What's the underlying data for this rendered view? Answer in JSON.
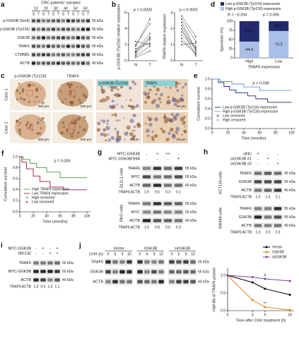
{
  "figure": {
    "a": {
      "label": "a",
      "title": "CRC patients' samples",
      "patients": [
        "1#",
        "2#",
        "3#",
        "4#",
        "5#",
        "6#"
      ],
      "lanes": [
        "S",
        "T",
        "S",
        "T",
        "S",
        "T",
        "S",
        "T",
        "S",
        "T",
        "S",
        "T"
      ],
      "rows": [
        "p-GSK3B (Ser9)",
        "p-GSK3B (Tyr216)",
        "GSK3B",
        "TRAF6",
        "CTNNB1",
        "ACTB"
      ],
      "kda": [
        "55 kDa",
        "55 kDa",
        "55 kDa",
        "55 kDa",
        "90 kDa",
        "40 kDa"
      ]
    },
    "c": {
      "label": "c",
      "stains": [
        "p-GSK3B (Tyr216)",
        "TRAF6"
      ],
      "cases": [
        "Case 1",
        "Case 2"
      ],
      "scale_bars": [
        "500 μm",
        "50 μm"
      ]
    },
    "g": {
      "label": "g",
      "conditions": [
        {
          "name": "MYC-GSK3B",
          "signs": [
            "-",
            "+",
            "++",
            "-"
          ]
        },
        {
          "name": "MYC-GSK3B/S9A",
          "signs": [
            "-",
            "-",
            "-",
            "+"
          ]
        }
      ],
      "blocks": [
        {
          "cells": "DLD-1 cells",
          "rows": [
            "TRAF6",
            "MYC",
            "ACTB"
          ],
          "kda": [
            "55 kDa",
            "55 kDa",
            "40 kDa"
          ],
          "ratio_label": "TRAF6:ACTB",
          "ratios": [
            "1.0",
            "0.5",
            "0.3",
            "0.1"
          ]
        },
        {
          "cells": "RKO cells",
          "rows": [
            "TRAF6",
            "MYC",
            "ACTB"
          ],
          "kda": [
            "55 kDa",
            "55 kDa",
            "40 kDa"
          ],
          "ratio_label": "TRAF6:ACTB",
          "ratios": [
            "1.0",
            "0.8",
            "0.5",
            "0.3"
          ]
        }
      ]
    },
    "h": {
      "label": "h",
      "conditions": [
        {
          "name": "siNC",
          "signs": [
            "+",
            "-",
            "-"
          ]
        },
        {
          "name": "siGSK3B #1",
          "signs": [
            "-",
            "+",
            "-"
          ]
        },
        {
          "name": "siGSK3B #2",
          "signs": [
            "-",
            "-",
            "+"
          ]
        }
      ],
      "blocks": [
        {
          "cells": "HCT116 cells",
          "rows": [
            "TRAF6",
            "GSK3B",
            "ACTB"
          ],
          "kda": [
            "55 kDa",
            "55 kDa",
            "40 kDa"
          ],
          "ratio_label": "TRAF6:ACTB",
          "ratios": [
            "1.0",
            "1.5",
            "2.1"
          ]
        },
        {
          "cells": "SW480 cells",
          "rows": [
            "TRAF6",
            "GSK3B",
            "ACTB"
          ],
          "kda": [
            "55 kDa",
            "55 kDa",
            "40 kDa"
          ],
          "ratio_label": "TRAF6:ACTB",
          "ratios": [
            "1.0",
            "2.0",
            "2.5"
          ]
        }
      ]
    },
    "i": {
      "label": "i",
      "conditions": [
        {
          "name": "MYC-GSK3B",
          "signs": [
            "-",
            "+",
            "-",
            "+"
          ]
        },
        {
          "name": "MG132",
          "signs": [
            "-",
            "-",
            "+",
            "+"
          ]
        }
      ],
      "blocks": [
        {
          "rows": [
            "TRAF6",
            "MYC-GSK3B",
            "ACTB"
          ],
          "kda": [
            "55 kDa",
            "55 kDa",
            "40 kDa"
          ],
          "ratio_label": "TRAF6:ACTB",
          "ratios": [
            "1.0",
            "0.5",
            "1.3",
            "1.1"
          ]
        }
      ]
    },
    "j": {
      "label": "j",
      "groups": [
        "Vector",
        "GSK3B",
        "siGSK3B"
      ],
      "chx_label": "CHX (h)",
      "chx_times": [
        "0",
        "6",
        "9",
        "15"
      ],
      "rows": [
        "TRAF6",
        "GSK3B",
        "ACTB"
      ],
      "kda": [
        "55 kDa",
        "55 kDa",
        "40 kDa"
      ]
    }
  },
  "chart_data": [
    {
      "type": "paired",
      "panel_label": "b",
      "x": [
        "N",
        "T"
      ],
      "y_label": "p-GSK3B (Tyr216) relative expression",
      "annotation": "p = 0.0002",
      "ylim": [
        0,
        6
      ],
      "yticks": [
        0,
        2,
        4,
        6
      ],
      "color": "#333333",
      "series": [
        {
          "values": [
            0.8,
            2.6
          ]
        },
        {
          "values": [
            1.2,
            3.4
          ]
        },
        {
          "values": [
            1.5,
            2.2
          ]
        },
        {
          "values": [
            0.6,
            1.8
          ]
        },
        {
          "values": [
            2.0,
            4.6
          ]
        },
        {
          "values": [
            1.0,
            3.0
          ]
        },
        {
          "values": [
            2.4,
            2.0
          ]
        },
        {
          "values": [
            0.4,
            1.2
          ]
        },
        {
          "values": [
            1.8,
            5.2
          ]
        },
        {
          "values": [
            1.1,
            2.8
          ]
        }
      ]
    },
    {
      "type": "paired",
      "x": [
        "N",
        "T"
      ],
      "y_label": "TRAF6 relative expression",
      "annotation": "p < 0.0001",
      "ylim": [
        0,
        3
      ],
      "yticks": [
        0,
        1,
        2,
        3
      ],
      "color": "#333333",
      "series": [
        {
          "values": [
            2.2,
            0.6
          ]
        },
        {
          "values": [
            1.8,
            0.9
          ]
        },
        {
          "values": [
            2.6,
            1.2
          ]
        },
        {
          "values": [
            1.4,
            0.4
          ]
        },
        {
          "values": [
            1.0,
            1.1
          ]
        },
        {
          "values": [
            2.0,
            0.3
          ]
        },
        {
          "values": [
            1.6,
            0.8
          ]
        },
        {
          "values": [
            2.8,
            1.5
          ]
        },
        {
          "values": [
            1.2,
            0.5
          ]
        },
        {
          "values": [
            2.4,
            0.7
          ]
        }
      ]
    },
    {
      "type": "stacked_bar",
      "panel_label": "d",
      "categories": [
        "High",
        "Low"
      ],
      "x_label": "TRAF6 expression",
      "y_label": "Specimen (%)",
      "annotations": [
        "R = −0.294",
        "p = 0.005"
      ],
      "ylim": [
        0,
        100
      ],
      "yticks": [
        0,
        25,
        50,
        75,
        100
      ],
      "label_color": "#e0203a",
      "series": [
        {
          "name": "High p-GSK3B (Tyr216) expression",
          "color": "#a9bfe8",
          "values": [
            44.4,
            73.3
          ]
        },
        {
          "name": "Low p-GSK3B (Tyr216) expression",
          "color": "#232a6e",
          "values": [
            55.6,
            26.7
          ]
        }
      ]
    },
    {
      "type": "survival",
      "panel_label": "e",
      "annotation": "p = 0.038",
      "x_label": "Time (months)",
      "y_label": "Cumulative survival",
      "xlim": [
        0,
        105
      ],
      "xticks": [
        0,
        20,
        40,
        60,
        80,
        100
      ],
      "ylim": [
        0,
        1
      ],
      "yticks": [
        {
          "value": 0,
          "label": "0.0"
        },
        0.2,
        0.4,
        0.6,
        0.8,
        {
          "value": 1,
          "label": "1.0"
        }
      ],
      "series": [
        {
          "name": "Low p-GSK3B (Tyr216) expression",
          "color": "#1b2a6b",
          "x": [
            0,
            8,
            8,
            15,
            15,
            22,
            22,
            30,
            30,
            45,
            45,
            55,
            55,
            70,
            70,
            100
          ],
          "values": [
            1,
            1,
            0.93,
            0.93,
            0.85,
            0.85,
            0.78,
            0.78,
            0.72,
            0.72,
            0.66,
            0.66,
            0.6,
            0.6,
            0.53,
            0.53
          ]
        },
        {
          "name": "High p-GSK3B (Tyr216) expression",
          "color": "#6d8ed6",
          "x": [
            0,
            10,
            10,
            25,
            25,
            40,
            40,
            60,
            60,
            100
          ],
          "values": [
            1,
            1,
            0.95,
            0.95,
            0.9,
            0.9,
            0.84,
            0.84,
            0.77,
            0.77
          ]
        }
      ],
      "censor_legend": [
        {
          "name": "Low censored",
          "color": "#1b2a6b"
        },
        {
          "name": "High censored",
          "color": "#6d8ed6"
        }
      ]
    },
    {
      "type": "survival",
      "panel_label": "f",
      "annotation": "p = 0.026",
      "x_label": "Time (months)",
      "y_label": "Cumulative survival",
      "xlim": [
        0,
        105
      ],
      "xticks": [
        0,
        20,
        40,
        60,
        80,
        100
      ],
      "ylim": [
        0,
        1
      ],
      "yticks": [
        {
          "value": 0,
          "label": "0.0"
        },
        0.2,
        0.4,
        0.6,
        0.8,
        {
          "value": 1,
          "label": "1.0"
        }
      ],
      "series": [
        {
          "name": "High TRAF6 expression",
          "color": "#3a9d3a",
          "x": [
            0,
            5,
            5,
            15,
            15,
            25,
            25,
            40,
            40,
            60,
            60,
            100
          ],
          "values": [
            1,
            1,
            0.95,
            0.95,
            0.88,
            0.88,
            0.8,
            0.8,
            0.72,
            0.72,
            0.62,
            0.62
          ]
        },
        {
          "name": "Low TRAF6 expression",
          "color": "#9b1c2c",
          "x": [
            0,
            3,
            3,
            10,
            10,
            20,
            20,
            30,
            30,
            45,
            45,
            65,
            65,
            100
          ],
          "values": [
            1,
            1,
            0.9,
            0.9,
            0.78,
            0.78,
            0.65,
            0.65,
            0.55,
            0.55,
            0.45,
            0.45,
            0.4,
            0.4
          ]
        }
      ],
      "censor_legend": [
        {
          "name": "High censored",
          "color": "#3a9d3a"
        },
        {
          "name": "Low censored",
          "color": "#9b1c2c"
        }
      ]
    },
    {
      "type": "line",
      "x": [
        0,
        6,
        9,
        15
      ],
      "x_label": "Time after CHX treatment (h)",
      "y_label": "Half-life of TRAF6 protein",
      "xlim": [
        0,
        16
      ],
      "xticks": [
        0,
        6,
        9,
        15
      ],
      "ylim": [
        0,
        1.2
      ],
      "yticks": [
        {
          "value": 0,
          "label": "0.0"
        },
        0.5,
        {
          "value": 1,
          "label": "1.0"
        }
      ],
      "annotations": [
        "**",
        "#"
      ],
      "series": [
        {
          "name": "Vector",
          "color": "#000000",
          "values": [
            1,
            0.8,
            0.62,
            0.45
          ]
        },
        {
          "name": "GSK3B",
          "color": "#e8821e",
          "values": [
            1,
            0.3,
            0.1,
            0.02
          ]
        },
        {
          "name": "siGSK3B",
          "color": "#7b3f9e",
          "values": [
            1,
            0.95,
            0.9,
            0.84
          ]
        }
      ]
    }
  ]
}
